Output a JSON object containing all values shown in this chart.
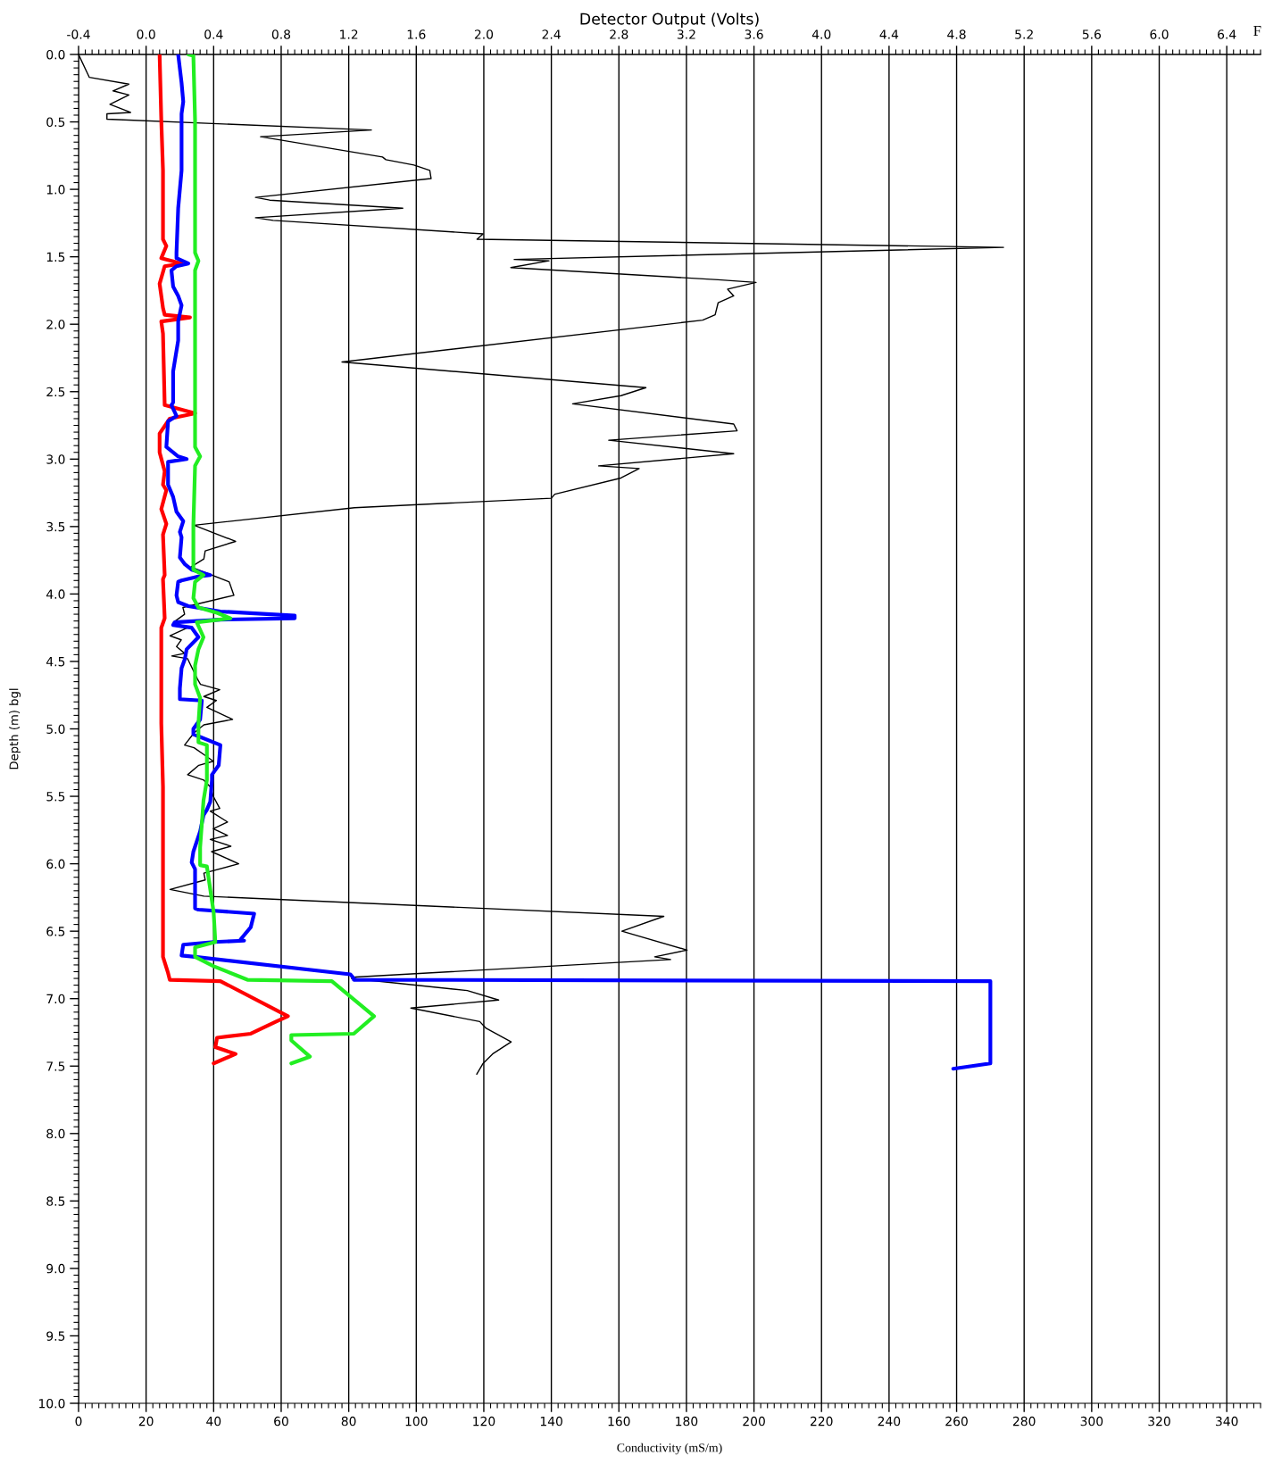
{
  "chart_data": {
    "type": "line",
    "x2label": "Detector Output (Volts)",
    "xlabel": "Conductivity (mS/m)",
    "ylabel": "Depth (m) bgl",
    "annotations": [
      "F"
    ],
    "xlim": [
      0,
      350
    ],
    "xticks": [
      0,
      20,
      40,
      60,
      80,
      100,
      120,
      140,
      160,
      180,
      200,
      220,
      240,
      260,
      280,
      300,
      320,
      340
    ],
    "x2lim": [
      -0.4,
      6.6
    ],
    "x2ticks": [
      {
        "value": -0.4,
        "label": "-0.4"
      },
      {
        "value": 0,
        "label": "0.0"
      },
      {
        "value": 0.4,
        "label": "0.4"
      },
      {
        "value": 0.8,
        "label": "0.8"
      },
      {
        "value": 1.2,
        "label": "1.2"
      },
      {
        "value": 1.6,
        "label": "1.6"
      },
      {
        "value": 2,
        "label": "2.0"
      },
      {
        "value": 2.4,
        "label": "2.4"
      },
      {
        "value": 2.8,
        "label": "2.8"
      },
      {
        "value": 3.2,
        "label": "3.2"
      },
      {
        "value": 3.6,
        "label": "3.6"
      },
      {
        "value": 4,
        "label": "4.0"
      },
      {
        "value": 4.4,
        "label": "4.4"
      },
      {
        "value": 4.8,
        "label": "4.8"
      },
      {
        "value": 5.2,
        "label": "5.2"
      },
      {
        "value": 5.6,
        "label": "5.6"
      },
      {
        "value": 6,
        "label": "6.0"
      },
      {
        "value": 6.4,
        "label": "6.4"
      }
    ],
    "ylim": [
      10,
      0
    ],
    "yticks": [
      {
        "value": 0,
        "label": "0.0"
      },
      {
        "value": 0.5,
        "label": "0.5"
      },
      {
        "value": 1,
        "label": "1.0"
      },
      {
        "value": 1.5,
        "label": "1.5"
      },
      {
        "value": 2,
        "label": "2.0"
      },
      {
        "value": 2.5,
        "label": "2.5"
      },
      {
        "value": 3,
        "label": "3.0"
      },
      {
        "value": 3.5,
        "label": "3.5"
      },
      {
        "value": 4,
        "label": "4.0"
      },
      {
        "value": 4.5,
        "label": "4.5"
      },
      {
        "value": 5,
        "label": "5.0"
      },
      {
        "value": 5.5,
        "label": "5.5"
      },
      {
        "value": 6,
        "label": "6.0"
      },
      {
        "value": 6.5,
        "label": "6.5"
      },
      {
        "value": 7,
        "label": "7.0"
      },
      {
        "value": 7.5,
        "label": "7.5"
      },
      {
        "value": 8,
        "label": "8.0"
      },
      {
        "value": 8.5,
        "label": "8.5"
      },
      {
        "value": 9,
        "label": "9.0"
      },
      {
        "value": 9.5,
        "label": "9.5"
      },
      {
        "value": 10,
        "label": "10.0"
      }
    ],
    "grid": "x",
    "line_style": "solid",
    "series": [
      {
        "color": "#000000",
        "x": [
          0,
          3.2,
          14.9,
          10.2,
          14.9,
          9.3,
          15.4,
          8.4,
          8.4,
          86.7,
          53.9,
          90.0,
          91.0,
          99.3,
          104.0,
          104.4,
          52.4,
          56.6,
          96.0,
          52.4,
          57.6,
          119.8,
          118.0,
          273.9,
          129.0,
          139.3,
          128.0,
          189.4,
          200.6,
          192.2,
          194.0,
          189.4,
          188.5,
          184.8,
          78.0,
          168.0,
          160.6,
          146.3,
          194.0,
          195.0,
          157.0,
          194.0,
          154.0,
          166.0,
          160.6,
          141.0,
          140.0,
          81.7,
          34.2,
          46.5,
          37.5,
          37.1,
          33.3,
          44.6,
          46.0,
          34.2,
          30.9,
          31.4,
          28.1,
          32.3,
          27.1,
          30.4,
          29.0,
          31.4,
          27.6,
          32.3,
          35.2,
          36.1,
          41.8,
          37.1,
          40.8,
          38.0,
          45.6,
          37.1,
          34.2,
          31.4,
          34.2,
          37.1,
          39.9,
          35.6,
          32.3,
          37.1,
          39.0,
          39.9,
          41.8,
          39.0,
          44.1,
          39.9,
          44.1,
          39.0,
          45.1,
          39.4,
          47.4,
          37.1,
          37.5,
          27.1,
          37.1,
          173.3,
          160.9,
          180.2,
          170.6,
          175.3,
          82.0,
          80.8,
          115.1,
          124.4,
          98.4,
          118.8,
          120.7,
          128.1,
          122.6,
          119.8,
          117.9
        ],
        "values": [
          0,
          0.17,
          0.22,
          0.27,
          0.3,
          0.37,
          0.43,
          0.44,
          0.48,
          0.56,
          0.61,
          0.76,
          0.78,
          0.82,
          0.86,
          0.92,
          1.06,
          1.08,
          1.14,
          1.21,
          1.23,
          1.33,
          1.37,
          1.43,
          1.52,
          1.53,
          1.58,
          1.67,
          1.69,
          1.74,
          1.79,
          1.84,
          1.93,
          1.97,
          2.28,
          2.47,
          2.53,
          2.59,
          2.74,
          2.79,
          2.86,
          2.96,
          3.05,
          3.07,
          3.14,
          3.26,
          3.29,
          3.36,
          3.49,
          3.61,
          3.68,
          3.74,
          3.8,
          3.91,
          4.01,
          4.08,
          4.1,
          4.15,
          4.21,
          4.25,
          4.31,
          4.34,
          4.39,
          4.44,
          4.46,
          4.48,
          4.63,
          4.67,
          4.71,
          4.76,
          4.79,
          4.84,
          4.93,
          4.97,
          5.03,
          5.12,
          5.14,
          5.19,
          5.24,
          5.27,
          5.34,
          5.38,
          5.43,
          5.5,
          5.59,
          5.61,
          5.69,
          5.74,
          5.79,
          5.82,
          5.87,
          5.91,
          6.0,
          6.07,
          6.12,
          6.19,
          6.24,
          6.39,
          6.5,
          6.64,
          6.69,
          6.71,
          6.84,
          6.85,
          6.94,
          7.01,
          7.07,
          7.17,
          7.22,
          7.32,
          7.41,
          7.48,
          7.56
        ]
      },
      {
        "axis": "x2",
        "color": "#ff0000",
        "x": [
          0.08,
          0.09,
          0.1,
          0.1,
          0.12,
          0.09,
          0.21,
          0.11,
          0.08,
          0.1,
          0.11,
          0.26,
          0.09,
          0.1,
          0.11,
          0.29,
          0.14,
          0.08,
          0.08,
          0.11,
          0.1,
          0.12,
          0.09,
          0.12,
          0.1,
          0.11,
          0.1,
          0.11,
          0.09,
          0.09,
          0.1,
          0.1,
          0.1,
          0.13,
          0.14,
          0.44,
          0.84,
          0.77,
          0.62,
          0.42,
          0.41,
          0.53,
          0.4
        ],
        "values": [
          0,
          0.49,
          0.86,
          1.37,
          1.42,
          1.51,
          1.55,
          1.57,
          1.7,
          1.88,
          1.93,
          1.95,
          1.98,
          2.07,
          2.6,
          2.66,
          2.7,
          2.81,
          2.95,
          3.09,
          3.19,
          3.23,
          3.37,
          3.48,
          3.56,
          3.86,
          3.89,
          4.18,
          4.25,
          4.96,
          5.43,
          6.38,
          6.69,
          6.81,
          6.86,
          6.87,
          7.13,
          7.17,
          7.26,
          7.29,
          7.36,
          7.41,
          7.48
        ]
      },
      {
        "axis": "x2",
        "color": "#0000ff",
        "x": [
          0.19,
          0.21,
          0.22,
          0.21,
          0.21,
          0.19,
          0.18,
          0.18,
          0.25,
          0.18,
          0.15,
          0.16,
          0.19,
          0.21,
          0.19,
          0.19,
          0.16,
          0.16,
          0.15,
          0.18,
          0.13,
          0.12,
          0.19,
          0.24,
          0.13,
          0.13,
          0.16,
          0.18,
          0.22,
          0.2,
          0.21,
          0.2,
          0.23,
          0.27,
          0.38,
          0.31,
          0.21,
          0.19,
          0.18,
          0.19,
          0.25,
          0.44,
          0.88,
          0.88,
          0.44,
          0.17,
          0.16,
          0.27,
          0.31,
          0.24,
          0.23,
          0.21,
          0.2,
          0.2,
          0.33,
          0.32,
          0.28,
          0.28,
          0.44,
          0.43,
          0.39,
          0.39,
          0.38,
          0.36,
          0.34,
          0.32,
          0.28,
          0.27,
          0.29,
          0.29,
          0.31,
          0.64,
          0.62,
          0.56,
          0.58,
          0.4,
          0.22,
          0.21,
          0.29,
          1.21,
          1.23,
          1.23,
          5.0,
          5.0,
          4.78
        ],
        "values": [
          0,
          0.21,
          0.35,
          0.44,
          0.86,
          1.14,
          1.47,
          1.51,
          1.55,
          1.57,
          1.6,
          1.72,
          1.79,
          1.86,
          1.98,
          2.12,
          2.35,
          2.58,
          2.6,
          2.68,
          2.72,
          2.91,
          2.98,
          3.0,
          3.02,
          3.19,
          3.28,
          3.39,
          3.46,
          3.54,
          3.58,
          3.73,
          3.78,
          3.82,
          3.86,
          3.87,
          3.9,
          3.91,
          4.01,
          4.06,
          4.09,
          4.13,
          4.16,
          4.18,
          4.19,
          4.21,
          4.23,
          4.25,
          4.32,
          4.41,
          4.48,
          4.55,
          4.7,
          4.78,
          4.79,
          4.93,
          5.0,
          5.04,
          5.12,
          5.27,
          5.34,
          5.38,
          5.54,
          5.6,
          5.64,
          5.76,
          5.91,
          5.99,
          6.04,
          6.33,
          6.34,
          6.37,
          6.47,
          6.56,
          6.57,
          6.58,
          6.6,
          6.68,
          6.69,
          6.82,
          6.85,
          6.86,
          6.87,
          7.48,
          7.52
        ]
      },
      {
        "axis": "x2",
        "color": "#22ee22",
        "x": [
          0.25,
          0.28,
          0.29,
          0.29,
          0.31,
          0.29,
          0.29,
          0.32,
          0.29,
          0.28,
          0.28,
          0.34,
          0.29,
          0.28,
          0.31,
          0.42,
          0.5,
          0.3,
          0.34,
          0.31,
          0.29,
          0.29,
          0.32,
          0.31,
          0.31,
          0.36,
          0.36,
          0.34,
          0.32,
          0.32,
          0.36,
          0.4,
          0.41,
          0.29,
          0.29,
          0.4,
          0.6,
          1.1,
          1.35,
          1.23,
          0.86,
          0.86,
          0.97,
          0.86
        ],
        "values": [
          0,
          0.01,
          0.49,
          1.47,
          1.53,
          1.6,
          2.91,
          2.98,
          3.05,
          3.49,
          3.82,
          3.86,
          3.91,
          4.03,
          4.1,
          4.14,
          4.18,
          4.21,
          4.32,
          4.41,
          4.53,
          4.67,
          4.77,
          4.96,
          5.1,
          5.12,
          5.38,
          5.53,
          5.88,
          6.01,
          6.02,
          6.36,
          6.58,
          6.62,
          6.69,
          6.76,
          6.86,
          6.87,
          7.13,
          7.26,
          7.27,
          7.31,
          7.43,
          7.48
        ]
      }
    ]
  }
}
